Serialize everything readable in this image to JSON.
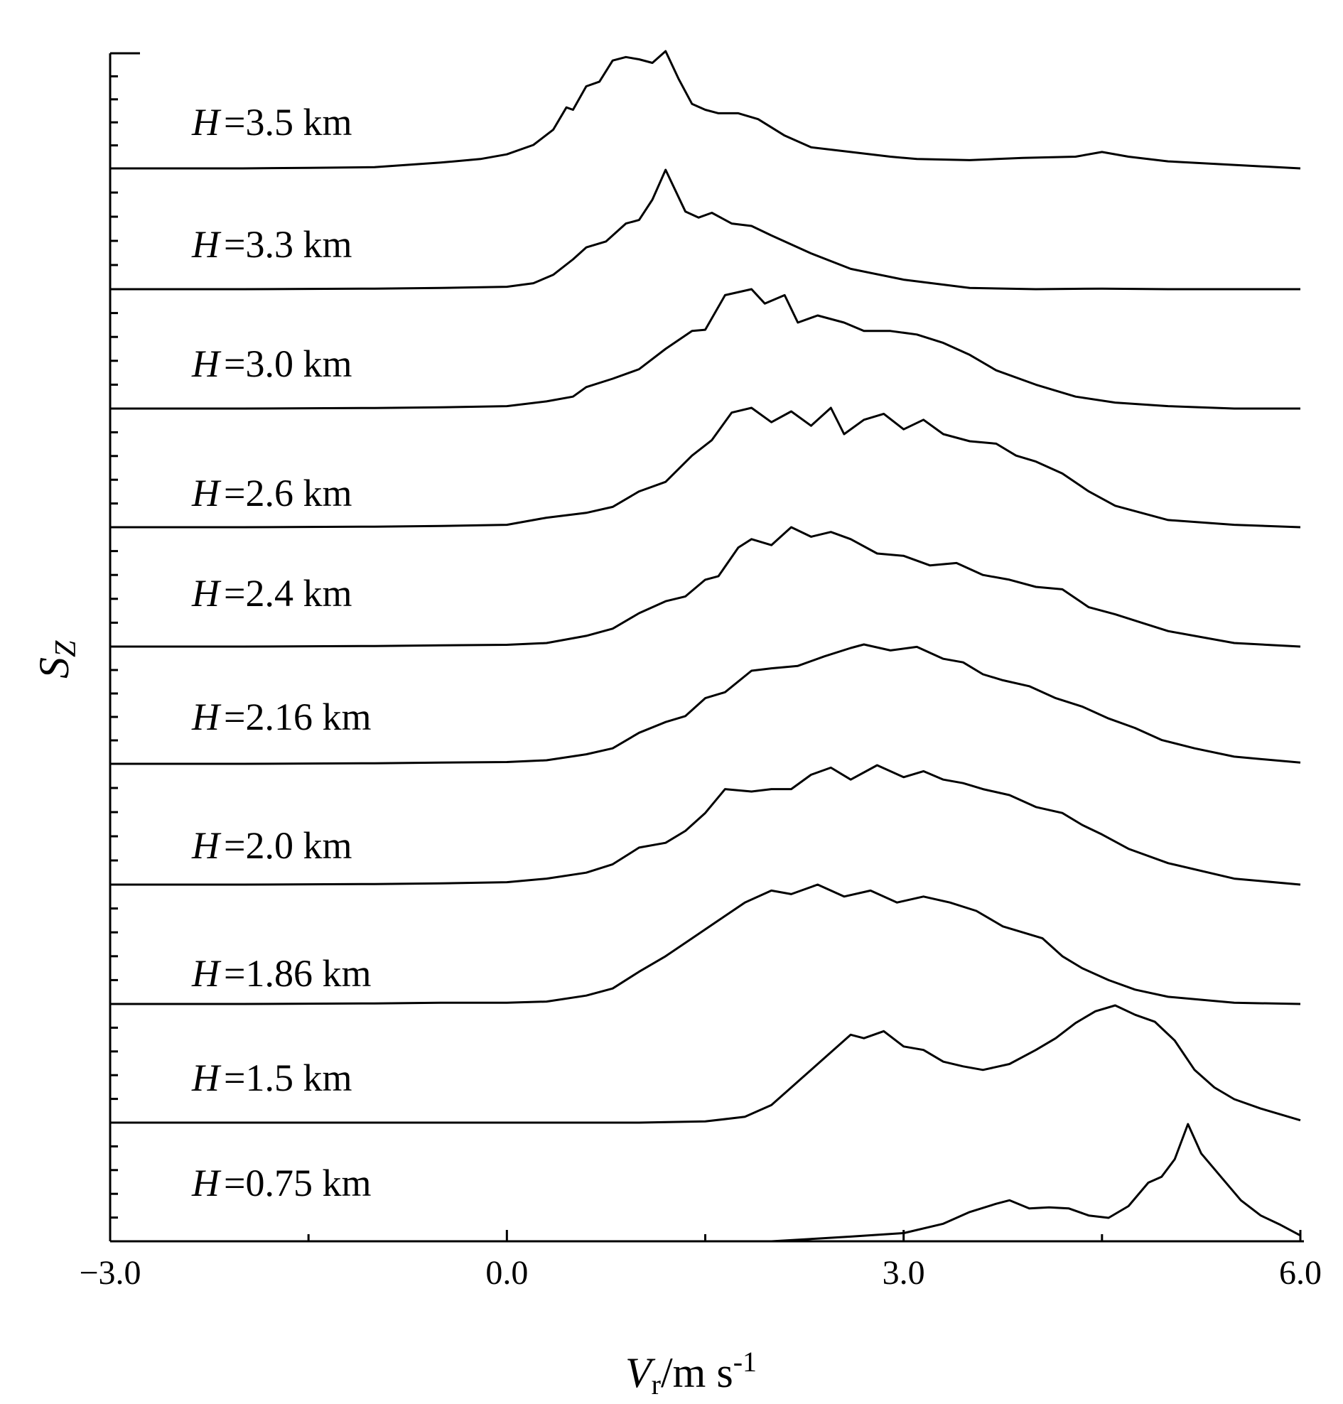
{
  "chart_data": {
    "type": "line",
    "subtype": "stacked-spectra (waterfall)",
    "xlim": [
      -3.0,
      6.0
    ],
    "x_ticks": [
      -3.0,
      0.0,
      3.0,
      6.0
    ],
    "x_tick_labels": [
      "−3.0",
      "0.0",
      "3.0",
      "6.0"
    ],
    "x_minor_ticks": [
      -1.5,
      1.5,
      4.5
    ],
    "xlabel": {
      "main": "V",
      "sub": "r",
      "rest": "/m s",
      "sup": "-1"
    },
    "ylabel": {
      "main": "S",
      "sub": "Z"
    },
    "grid": false,
    "legend": "none (labels placed inside each panel)",
    "series": [
      {
        "label": {
          "var": "H",
          "text": "=3.5 km"
        },
        "x": [
          -3.0,
          -2.5,
          -2.0,
          -1.5,
          -1.0,
          -0.5,
          -0.2,
          0.0,
          0.2,
          0.35,
          0.45,
          0.5,
          0.6,
          0.7,
          0.8,
          0.9,
          1.0,
          1.1,
          1.2,
          1.3,
          1.4,
          1.5,
          1.6,
          1.75,
          1.9,
          2.1,
          2.3,
          2.6,
          2.9,
          3.1,
          3.5,
          3.9,
          4.3,
          4.5,
          4.7,
          5.0,
          5.5,
          6.0
        ],
        "y": [
          0.0,
          0.0,
          0.0,
          0.005,
          0.01,
          0.05,
          0.08,
          0.12,
          0.2,
          0.33,
          0.52,
          0.5,
          0.7,
          0.74,
          0.92,
          0.95,
          0.93,
          0.9,
          1.0,
          0.76,
          0.55,
          0.5,
          0.47,
          0.47,
          0.42,
          0.28,
          0.18,
          0.14,
          0.1,
          0.08,
          0.07,
          0.09,
          0.1,
          0.14,
          0.1,
          0.06,
          0.03,
          0.0
        ]
      },
      {
        "label": {
          "var": "H",
          "text": "=3.3 km"
        },
        "x": [
          -3.0,
          -2.0,
          -1.0,
          -0.5,
          0.0,
          0.2,
          0.35,
          0.5,
          0.6,
          0.75,
          0.9,
          1.0,
          1.1,
          1.2,
          1.35,
          1.45,
          1.55,
          1.7,
          1.85,
          2.0,
          2.3,
          2.6,
          3.0,
          3.5,
          4.0,
          4.5,
          5.0,
          5.5,
          6.0
        ],
        "y": [
          0.0,
          0.0,
          0.005,
          0.01,
          0.02,
          0.05,
          0.12,
          0.25,
          0.35,
          0.4,
          0.55,
          0.58,
          0.75,
          1.0,
          0.65,
          0.6,
          0.64,
          0.55,
          0.53,
          0.45,
          0.3,
          0.17,
          0.08,
          0.01,
          0.0,
          0.005,
          0.0,
          0.0,
          0.0
        ]
      },
      {
        "label": {
          "var": "H",
          "text": "=3.0 km"
        },
        "x": [
          -3.0,
          -2.0,
          -1.0,
          -0.5,
          0.0,
          0.3,
          0.5,
          0.6,
          0.8,
          1.0,
          1.2,
          1.4,
          1.5,
          1.65,
          1.85,
          1.95,
          2.1,
          2.2,
          2.35,
          2.55,
          2.7,
          2.9,
          3.1,
          3.3,
          3.5,
          3.7,
          4.0,
          4.3,
          4.6,
          5.0,
          5.5,
          6.0
        ],
        "y": [
          0.0,
          0.0,
          0.005,
          0.01,
          0.02,
          0.06,
          0.1,
          0.18,
          0.25,
          0.33,
          0.5,
          0.65,
          0.66,
          0.95,
          1.0,
          0.88,
          0.95,
          0.72,
          0.78,
          0.72,
          0.65,
          0.65,
          0.62,
          0.55,
          0.45,
          0.32,
          0.2,
          0.1,
          0.05,
          0.02,
          0.0,
          0.0
        ]
      },
      {
        "label": {
          "var": "H",
          "text": "=2.6 km"
        },
        "x": [
          -3.0,
          -2.0,
          -1.0,
          -0.5,
          0.0,
          0.3,
          0.6,
          0.8,
          1.0,
          1.2,
          1.4,
          1.55,
          1.7,
          1.85,
          2.0,
          2.15,
          2.3,
          2.45,
          2.55,
          2.7,
          2.85,
          3.0,
          3.15,
          3.3,
          3.5,
          3.7,
          3.85,
          4.0,
          4.2,
          4.4,
          4.6,
          5.0,
          5.5,
          6.0
        ],
        "y": [
          0.0,
          0.0,
          0.005,
          0.01,
          0.02,
          0.08,
          0.12,
          0.17,
          0.3,
          0.38,
          0.6,
          0.73,
          0.96,
          1.0,
          0.88,
          0.97,
          0.85,
          1.0,
          0.78,
          0.9,
          0.95,
          0.82,
          0.9,
          0.78,
          0.72,
          0.7,
          0.6,
          0.55,
          0.45,
          0.3,
          0.18,
          0.06,
          0.02,
          0.0
        ]
      },
      {
        "label": {
          "var": "H",
          "text": "=2.4 km"
        },
        "x": [
          -3.0,
          -2.0,
          -1.0,
          -0.5,
          0.0,
          0.3,
          0.6,
          0.8,
          1.0,
          1.2,
          1.35,
          1.5,
          1.6,
          1.75,
          1.85,
          2.0,
          2.15,
          2.3,
          2.45,
          2.6,
          2.8,
          3.0,
          3.2,
          3.4,
          3.6,
          3.8,
          4.0,
          4.2,
          4.4,
          4.6,
          4.8,
          5.0,
          5.5,
          6.0
        ],
        "y": [
          0.0,
          0.0,
          0.005,
          0.01,
          0.015,
          0.03,
          0.09,
          0.15,
          0.28,
          0.38,
          0.42,
          0.56,
          0.59,
          0.83,
          0.9,
          0.85,
          1.0,
          0.92,
          0.96,
          0.9,
          0.78,
          0.76,
          0.68,
          0.7,
          0.6,
          0.56,
          0.5,
          0.48,
          0.33,
          0.27,
          0.2,
          0.13,
          0.03,
          0.0
        ]
      },
      {
        "label": {
          "var": "H",
          "text": "=2.16 km"
        },
        "x": [
          -3.0,
          -2.0,
          -1.0,
          -0.5,
          0.0,
          0.3,
          0.6,
          0.8,
          1.0,
          1.2,
          1.35,
          1.5,
          1.65,
          1.85,
          2.0,
          2.2,
          2.4,
          2.6,
          2.7,
          2.9,
          3.1,
          3.3,
          3.45,
          3.6,
          3.75,
          3.95,
          4.15,
          4.35,
          4.55,
          4.75,
          4.95,
          5.2,
          5.5,
          6.0
        ],
        "y": [
          0.0,
          0.0,
          0.005,
          0.01,
          0.015,
          0.03,
          0.08,
          0.13,
          0.26,
          0.35,
          0.4,
          0.55,
          0.6,
          0.78,
          0.8,
          0.82,
          0.9,
          0.97,
          1.0,
          0.95,
          0.98,
          0.88,
          0.85,
          0.75,
          0.7,
          0.65,
          0.55,
          0.48,
          0.38,
          0.3,
          0.2,
          0.13,
          0.06,
          0.01
        ]
      },
      {
        "label": {
          "var": "H",
          "text": "=2.0 km"
        },
        "x": [
          -3.0,
          -2.0,
          -1.0,
          -0.5,
          0.0,
          0.3,
          0.6,
          0.8,
          1.0,
          1.2,
          1.35,
          1.5,
          1.65,
          1.85,
          2.0,
          2.15,
          2.3,
          2.45,
          2.6,
          2.8,
          3.0,
          3.15,
          3.3,
          3.45,
          3.6,
          3.8,
          4.0,
          4.2,
          4.35,
          4.5,
          4.7,
          5.0,
          5.5,
          6.0
        ],
        "y": [
          0.0,
          0.0,
          0.005,
          0.01,
          0.02,
          0.05,
          0.1,
          0.17,
          0.31,
          0.35,
          0.45,
          0.6,
          0.8,
          0.78,
          0.8,
          0.8,
          0.92,
          0.98,
          0.88,
          1.0,
          0.9,
          0.95,
          0.88,
          0.85,
          0.8,
          0.75,
          0.65,
          0.6,
          0.5,
          0.42,
          0.3,
          0.18,
          0.05,
          0.0
        ]
      },
      {
        "label": {
          "var": "H",
          "text": "=1.86 km"
        },
        "x": [
          -3.0,
          -2.0,
          -1.0,
          -0.5,
          0.0,
          0.3,
          0.6,
          0.8,
          1.0,
          1.2,
          1.4,
          1.6,
          1.8,
          2.0,
          2.15,
          2.35,
          2.55,
          2.75,
          2.95,
          3.15,
          3.35,
          3.55,
          3.75,
          3.9,
          4.05,
          4.2,
          4.35,
          4.55,
          4.75,
          5.0,
          5.5,
          6.0
        ],
        "y": [
          0.0,
          0.0,
          0.005,
          0.01,
          0.01,
          0.02,
          0.07,
          0.13,
          0.27,
          0.4,
          0.55,
          0.7,
          0.85,
          0.95,
          0.92,
          1.0,
          0.9,
          0.95,
          0.85,
          0.9,
          0.85,
          0.78,
          0.65,
          0.6,
          0.55,
          0.4,
          0.3,
          0.2,
          0.12,
          0.06,
          0.01,
          0.0
        ]
      },
      {
        "label": {
          "var": "H",
          "text": "=1.5 km"
        },
        "x": [
          -3.0,
          -2.0,
          -1.0,
          0.0,
          1.0,
          1.5,
          1.8,
          2.0,
          2.2,
          2.4,
          2.6,
          2.7,
          2.85,
          3.0,
          3.15,
          3.3,
          3.45,
          3.6,
          3.8,
          4.0,
          4.15,
          4.3,
          4.45,
          4.6,
          4.75,
          4.9,
          5.05,
          5.2,
          5.35,
          5.5,
          5.7,
          6.0
        ],
        "y": [
          0.0,
          0.0,
          0.0,
          0.0,
          0.0,
          0.01,
          0.05,
          0.15,
          0.35,
          0.55,
          0.75,
          0.72,
          0.78,
          0.65,
          0.62,
          0.52,
          0.48,
          0.45,
          0.5,
          0.62,
          0.72,
          0.85,
          0.95,
          1.0,
          0.92,
          0.86,
          0.7,
          0.45,
          0.3,
          0.2,
          0.12,
          0.02
        ]
      },
      {
        "label": {
          "var": "H",
          "text": "=0.75 km"
        },
        "x": [
          -3.0,
          -1.0,
          0.0,
          1.0,
          1.5,
          2.0,
          2.3,
          2.6,
          3.0,
          3.3,
          3.5,
          3.7,
          3.8,
          3.95,
          4.1,
          4.25,
          4.4,
          4.55,
          4.7,
          4.85,
          4.95,
          5.05,
          5.15,
          5.25,
          5.4,
          5.55,
          5.7,
          5.85,
          6.0
        ],
        "y": [
          0.0,
          0.0,
          0.0,
          0.0,
          0.0,
          0.0,
          0.02,
          0.04,
          0.07,
          0.15,
          0.25,
          0.32,
          0.35,
          0.28,
          0.29,
          0.28,
          0.22,
          0.2,
          0.3,
          0.5,
          0.55,
          0.7,
          1.0,
          0.75,
          0.55,
          0.35,
          0.22,
          0.14,
          0.05
        ]
      }
    ]
  }
}
